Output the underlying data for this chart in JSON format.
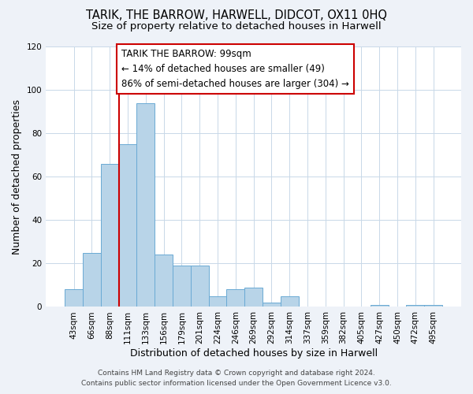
{
  "title": "TARIK, THE BARROW, HARWELL, DIDCOT, OX11 0HQ",
  "subtitle": "Size of property relative to detached houses in Harwell",
  "xlabel": "Distribution of detached houses by size in Harwell",
  "ylabel": "Number of detached properties",
  "bar_labels": [
    "43sqm",
    "66sqm",
    "88sqm",
    "111sqm",
    "133sqm",
    "156sqm",
    "179sqm",
    "201sqm",
    "224sqm",
    "246sqm",
    "269sqm",
    "292sqm",
    "314sqm",
    "337sqm",
    "359sqm",
    "382sqm",
    "405sqm",
    "427sqm",
    "450sqm",
    "472sqm",
    "495sqm"
  ],
  "bar_heights": [
    8,
    25,
    66,
    75,
    94,
    24,
    19,
    19,
    5,
    8,
    9,
    2,
    5,
    0,
    0,
    0,
    0,
    1,
    0,
    1,
    1
  ],
  "bar_color": "#b8d4e8",
  "bar_edge_color": "#6aaad4",
  "vline_color": "#cc0000",
  "vline_x_index": 2,
  "annotation_line1": "TARIK THE BARROW: 99sqm",
  "annotation_line2": "← 14% of detached houses are smaller (49)",
  "annotation_line3": "86% of semi-detached houses are larger (304) →",
  "annotation_box_color": "#ffffff",
  "annotation_box_edge_color": "#cc0000",
  "ylim": [
    0,
    120
  ],
  "yticks": [
    0,
    20,
    40,
    60,
    80,
    100,
    120
  ],
  "footer_line1": "Contains HM Land Registry data © Crown copyright and database right 2024.",
  "footer_line2": "Contains public sector information licensed under the Open Government Licence v3.0.",
  "bg_color": "#eef2f8",
  "plot_bg_color": "#ffffff",
  "title_fontsize": 10.5,
  "subtitle_fontsize": 9.5,
  "axis_label_fontsize": 9,
  "tick_fontsize": 7.5,
  "annotation_fontsize": 8.5,
  "footer_fontsize": 6.5,
  "grid_color": "#c8d8e8"
}
